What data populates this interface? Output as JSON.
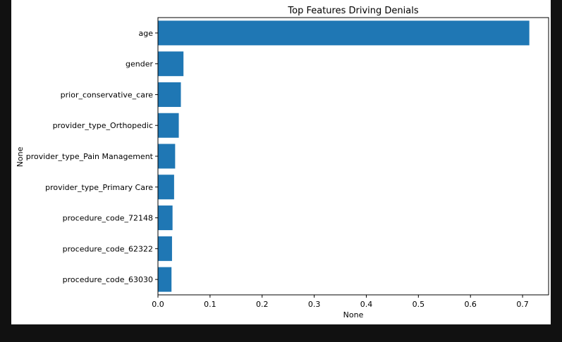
{
  "chart_data": {
    "type": "bar",
    "orientation": "horizontal",
    "title": "Top Features Driving Denials",
    "xlabel": "None",
    "ylabel": "None",
    "xlim": [
      0,
      0.75
    ],
    "xticks": [
      0.0,
      0.1,
      0.2,
      0.3,
      0.4,
      0.5,
      0.6,
      0.7
    ],
    "xtick_labels": [
      "0.0",
      "0.1",
      "0.2",
      "0.3",
      "0.4",
      "0.5",
      "0.6",
      "0.7"
    ],
    "grid": false,
    "bar_color": "#1f77b4",
    "categories": [
      "age",
      "gender",
      "prior_conservative_care",
      "provider_type_Orthopedic",
      "provider_type_Pain Management",
      "provider_type_Primary Care",
      "procedure_code_72148",
      "procedure_code_62322",
      "procedure_code_63030"
    ],
    "values": [
      0.713,
      0.049,
      0.044,
      0.04,
      0.033,
      0.031,
      0.028,
      0.027,
      0.026
    ]
  }
}
